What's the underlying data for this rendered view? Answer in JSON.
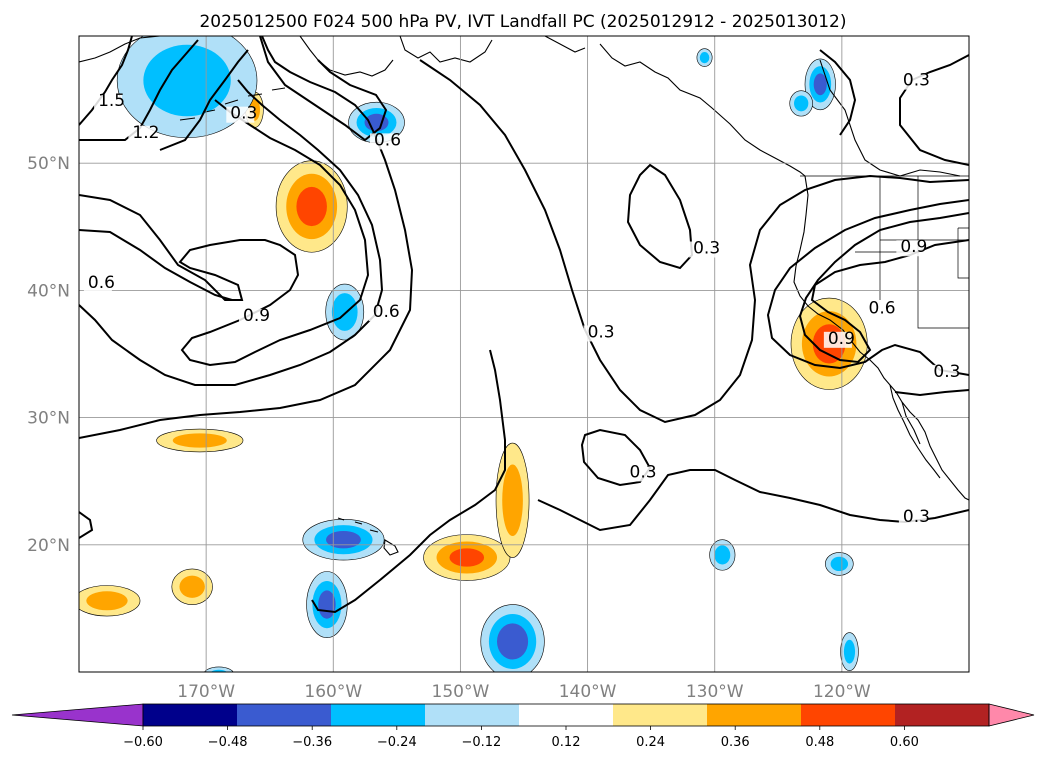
{
  "chart_data": {
    "type": "map",
    "title": "2025012500 F024 500 hPa PV, IVT Landfall PC (2025012912 - 2025013012)",
    "lon_range": [
      -180,
      -110
    ],
    "lat_range": [
      10,
      60
    ],
    "lon_ticks": [
      -170,
      -160,
      -150,
      -140,
      -130,
      -120
    ],
    "lon_tick_labels": [
      "170°W",
      "160°W",
      "150°W",
      "140°W",
      "130°W",
      "120°W"
    ],
    "lat_ticks": [
      20,
      30,
      40,
      50
    ],
    "lat_tick_labels": [
      "20°N",
      "30°N",
      "40°N",
      "50°N"
    ],
    "grid": true,
    "contour_levels": [
      0.3,
      0.6,
      0.9,
      1.2,
      1.5
    ],
    "contour_labels": [
      {
        "text": "1.5",
        "lon": -178.5,
        "lat": 54.5
      },
      {
        "text": "1.2",
        "lon": -175.8,
        "lat": 52.0
      },
      {
        "text": "0.3",
        "lon": -168.1,
        "lat": 53.5
      },
      {
        "text": "0.6",
        "lon": -156.8,
        "lat": 51.4
      },
      {
        "text": "0.6",
        "lon": -179.3,
        "lat": 40.2
      },
      {
        "text": "0.9",
        "lon": -167.1,
        "lat": 37.6
      },
      {
        "text": "0.6",
        "lon": -156.9,
        "lat": 37.9
      },
      {
        "text": "0.3",
        "lon": -131.7,
        "lat": 42.9
      },
      {
        "text": "0.3",
        "lon": -140.0,
        "lat": 36.3
      },
      {
        "text": "0.3",
        "lon": -136.7,
        "lat": 25.3
      },
      {
        "text": "0.3",
        "lon": -115.2,
        "lat": 21.8
      },
      {
        "text": "0.9",
        "lon": -115.4,
        "lat": 43.0
      },
      {
        "text": "0.6",
        "lon": -117.9,
        "lat": 38.2
      },
      {
        "text": "0.9",
        "lon": -121.1,
        "lat": 35.8
      },
      {
        "text": "0.3",
        "lon": -115.2,
        "lat": 56.1
      },
      {
        "text": "0.3",
        "lon": -112.8,
        "lat": 33.2
      }
    ],
    "colorbar": {
      "boundaries": [
        -0.6,
        -0.48,
        -0.36,
        -0.24,
        -0.12,
        0.12,
        0.24,
        0.36,
        0.48,
        0.6
      ],
      "tick_labels": [
        "−0.60",
        "−0.48",
        "−0.36",
        "−0.24",
        "−0.12",
        "0.12",
        "0.24",
        "0.36",
        "0.48",
        "0.60"
      ],
      "colors": [
        "#9933cc",
        "#00008b",
        "#3a5bd0",
        "#00bfff",
        "#b0e0f8",
        "#ffffff",
        "#ffe88a",
        "#ffa500",
        "#ff4500",
        "#b22222",
        "#ff88aa"
      ],
      "extend": "both"
    },
    "shaded_regions": [
      {
        "lon": -161.7,
        "lat": 46.6,
        "rx": 2.8,
        "ry": 3.6,
        "value": 0.4
      },
      {
        "lon": -121.0,
        "lat": 35.8,
        "rx": 3.0,
        "ry": 3.6,
        "value": 0.4
      },
      {
        "lon": -149.5,
        "lat": 19.0,
        "rx": 3.4,
        "ry": 1.8,
        "value": 0.38
      },
      {
        "lon": -145.9,
        "lat": 23.5,
        "rx": 1.3,
        "ry": 4.5,
        "value": 0.3
      },
      {
        "lon": -170.5,
        "lat": 28.2,
        "rx": 3.4,
        "ry": 0.9,
        "value": 0.3
      },
      {
        "lon": -177.8,
        "lat": 15.6,
        "rx": 2.6,
        "ry": 1.2,
        "value": 0.3
      },
      {
        "lon": -171.1,
        "lat": 16.7,
        "rx": 1.6,
        "ry": 1.4,
        "value": 0.3
      },
      {
        "lon": -166.2,
        "lat": 54.2,
        "rx": 0.7,
        "ry": 1.4,
        "value": 0.3
      },
      {
        "lon": -171.5,
        "lat": 56.5,
        "rx": 5.5,
        "ry": 4.5,
        "value": -0.3
      },
      {
        "lon": -156.6,
        "lat": 53.2,
        "rx": 2.2,
        "ry": 1.6,
        "value": -0.4
      },
      {
        "lon": -159.1,
        "lat": 38.3,
        "rx": 1.5,
        "ry": 2.2,
        "value": -0.35
      },
      {
        "lon": -159.2,
        "lat": 20.4,
        "rx": 3.2,
        "ry": 1.6,
        "value": -0.4
      },
      {
        "lon": -160.5,
        "lat": 15.3,
        "rx": 1.6,
        "ry": 2.6,
        "value": -0.4
      },
      {
        "lon": -145.9,
        "lat": 12.4,
        "rx": 2.5,
        "ry": 2.9,
        "value": -0.45
      },
      {
        "lon": -121.7,
        "lat": 56.2,
        "rx": 1.2,
        "ry": 2.0,
        "value": -0.4
      },
      {
        "lon": -123.2,
        "lat": 54.7,
        "rx": 0.9,
        "ry": 1.0,
        "value": -0.3
      },
      {
        "lon": -130.8,
        "lat": 58.3,
        "rx": 0.6,
        "ry": 0.7,
        "value": -0.3
      },
      {
        "lon": -129.4,
        "lat": 19.2,
        "rx": 1.0,
        "ry": 1.2,
        "value": -0.3
      },
      {
        "lon": -120.2,
        "lat": 18.5,
        "rx": 1.1,
        "ry": 0.9,
        "value": -0.3
      },
      {
        "lon": -119.4,
        "lat": 11.6,
        "rx": 0.7,
        "ry": 1.5,
        "value": -0.3
      },
      {
        "lon": -169.0,
        "lat": 9.8,
        "rx": 1.2,
        "ry": 0.6,
        "value": -0.3
      }
    ]
  }
}
